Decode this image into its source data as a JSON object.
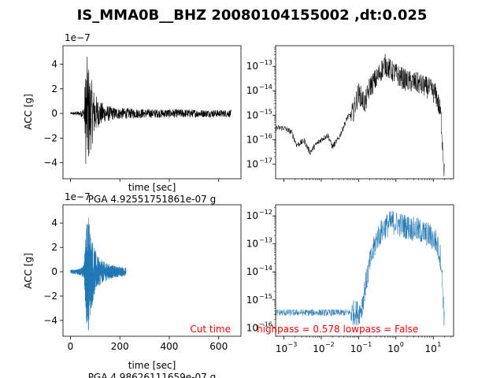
{
  "suptitle": "IS_MMA0B__BHZ 20080104155002 ,dt:0.025",
  "chart_data": [
    {
      "type": "line",
      "panel": "top-left",
      "series": [
        {
          "color": "#000000",
          "x_range": [
            0,
            650
          ],
          "envelope": [
            [
              0,
              0.1
            ],
            [
              20,
              0.15
            ],
            [
              40,
              0.2
            ],
            [
              55,
              0.5
            ],
            [
              62,
              4.2
            ],
            [
              70,
              4.8
            ],
            [
              80,
              3.2
            ],
            [
              95,
              2.0
            ],
            [
              110,
              1.2
            ],
            [
              140,
              0.7
            ],
            [
              180,
              0.5
            ],
            [
              250,
              0.4
            ],
            [
              350,
              0.35
            ],
            [
              450,
              0.35
            ],
            [
              550,
              0.3
            ],
            [
              650,
              0.3
            ]
          ]
        }
      ],
      "xlabel": "time [sec]",
      "ylabel": "ACC [g]",
      "yscale_label": "1e−7",
      "ylim": [
        -5.3,
        5.5
      ],
      "yticks": [
        -4,
        -2,
        0,
        2,
        4
      ],
      "ytick_labels": [
        "−4",
        "−2",
        "0",
        "2",
        "4"
      ],
      "annotation": "PGA 4.92551751861e-07 g"
    },
    {
      "type": "line",
      "panel": "top-right",
      "xscale": "log",
      "yscale": "log",
      "xlim": [
        0.0006,
        35
      ],
      "ylim": [
        2.5e-18,
        7e-13
      ],
      "yticks": [
        1e-17,
        1e-16,
        1e-15,
        1e-14,
        1e-13
      ],
      "ytick_exponents": [
        "−17",
        "−16",
        "−15",
        "−14",
        "−13"
      ],
      "series": [
        {
          "color": "#000000",
          "points": [
            [
              0.0006,
              3e-16
            ],
            [
              0.001,
              3e-16
            ],
            [
              0.0016,
              2e-16
            ],
            [
              0.0022,
              6e-17
            ],
            [
              0.0035,
              9e-17
            ],
            [
              0.005,
              3e-17
            ],
            [
              0.007,
              6e-17
            ],
            [
              0.01,
              1e-16
            ],
            [
              0.015,
              1.5e-16
            ],
            [
              0.02,
              5e-17
            ],
            [
              0.03,
              1.2e-16
            ],
            [
              0.05,
              8e-16
            ],
            [
              0.07,
              1.2e-15
            ],
            [
              0.1,
              8e-15
            ],
            [
              0.15,
              3e-15
            ],
            [
              0.2,
              1.5e-14
            ],
            [
              0.3,
              3e-14
            ],
            [
              0.5,
              1.2e-13
            ],
            [
              0.8,
              6e-14
            ],
            [
              1.2,
              4e-14
            ],
            [
              2,
              2.5e-14
            ],
            [
              4,
              2e-14
            ],
            [
              8,
              1.2e-14
            ],
            [
              12,
              7e-15
            ],
            [
              16,
              1e-15
            ],
            [
              18,
              4e-17
            ],
            [
              20,
              4e-18
            ]
          ]
        }
      ]
    },
    {
      "type": "line",
      "panel": "bottom-left",
      "series": [
        {
          "color": "#1f77b4",
          "x_range": [
            0,
            225
          ],
          "envelope": [
            [
              0,
              0.15
            ],
            [
              20,
              0.2
            ],
            [
              40,
              0.3
            ],
            [
              55,
              0.6
            ],
            [
              65,
              4.3
            ],
            [
              73,
              4.9
            ],
            [
              82,
              3.4
            ],
            [
              95,
              2.1
            ],
            [
              110,
              1.3
            ],
            [
              130,
              0.9
            ],
            [
              160,
              0.6
            ],
            [
              200,
              0.4
            ],
            [
              225,
              0.35
            ]
          ]
        }
      ],
      "xlabel": "time [sec]",
      "ylabel": "ACC [g]",
      "yscale_label": "1e−7",
      "xlim": [
        -30,
        690
      ],
      "ylim": [
        -5.3,
        5.5
      ],
      "xticks": [
        0,
        200,
        400,
        600
      ],
      "xtick_labels": [
        "0",
        "200",
        "400",
        "600"
      ],
      "yticks": [
        -4,
        -2,
        0,
        2,
        4
      ],
      "ytick_labels": [
        "−4",
        "−2",
        "0",
        "2",
        "4"
      ],
      "annotation_left": "Cut time",
      "annotation_below": "PGA 4.98626111659e-07 g"
    },
    {
      "type": "line",
      "panel": "bottom-right",
      "xscale": "log",
      "yscale": "log",
      "xlim": [
        0.0006,
        35
      ],
      "ylim": [
        5e-17,
        2.5e-12
      ],
      "xticks": [
        0.001,
        0.01,
        0.1,
        1,
        10
      ],
      "xtick_exponents": [
        "−3",
        "−2",
        "−1",
        "0",
        "1"
      ],
      "yticks": [
        1e-16,
        1e-15,
        1e-14,
        1e-13,
        1e-12
      ],
      "ytick_exponents": [
        "−16",
        "−15",
        "−14",
        "−13",
        "−12"
      ],
      "series": [
        {
          "color": "#1f77b4",
          "points": [
            [
              0.0006,
              3.5e-16
            ],
            [
              0.01,
              3.5e-16
            ],
            [
              0.05,
              3.5e-16
            ],
            [
              0.1,
              3.5e-16
            ],
            [
              0.12,
              5e-16
            ],
            [
              0.15,
              3e-15
            ],
            [
              0.2,
              2e-14
            ],
            [
              0.3,
              1.5e-13
            ],
            [
              0.5,
              4e-13
            ],
            [
              0.8,
              6e-13
            ],
            [
              1.2,
              5e-13
            ],
            [
              2,
              4e-13
            ],
            [
              4,
              3e-13
            ],
            [
              8,
              2e-13
            ],
            [
              12,
              1.2e-13
            ],
            [
              16,
              3e-14
            ],
            [
              18,
              2e-15
            ],
            [
              20,
              1.5e-16
            ]
          ]
        }
      ],
      "annotation": "highpass = 0.578 lowpass = False"
    }
  ],
  "colors": {
    "black_trace": "#000000",
    "blue_trace": "#1f77b4",
    "annotation_red": "#ff0000"
  }
}
